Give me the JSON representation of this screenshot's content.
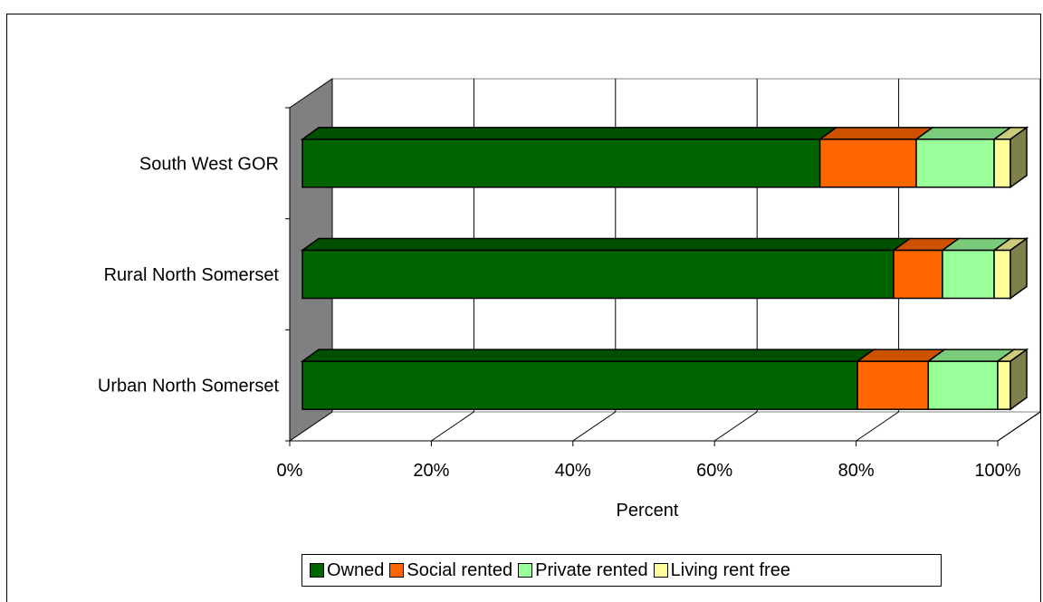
{
  "chart_data": {
    "type": "bar",
    "orientation": "horizontal",
    "stacked": true,
    "three_d": true,
    "categories": [
      "South West GOR",
      "Rural North Somerset",
      "Urban North Somerset"
    ],
    "series": [
      {
        "name": "Owned",
        "color": "#006400",
        "values": [
          73.1,
          83.5,
          78.4
        ]
      },
      {
        "name": "Social rented",
        "color": "#FF6600",
        "values": [
          13.6,
          6.9,
          10.0
        ]
      },
      {
        "name": "Private rented",
        "color": "#99FF99",
        "values": [
          11.0,
          7.3,
          9.8
        ]
      },
      {
        "name": "Living rent free",
        "color": "#FFFF99",
        "values": [
          2.3,
          2.3,
          1.8
        ]
      }
    ],
    "xlabel": "Percent",
    "ylabel": "",
    "xlim": [
      0,
      100
    ],
    "x_ticks": [
      "0%",
      "20%",
      "40%",
      "60%",
      "80%",
      "100%"
    ],
    "grid": true,
    "legend_position": "bottom"
  }
}
